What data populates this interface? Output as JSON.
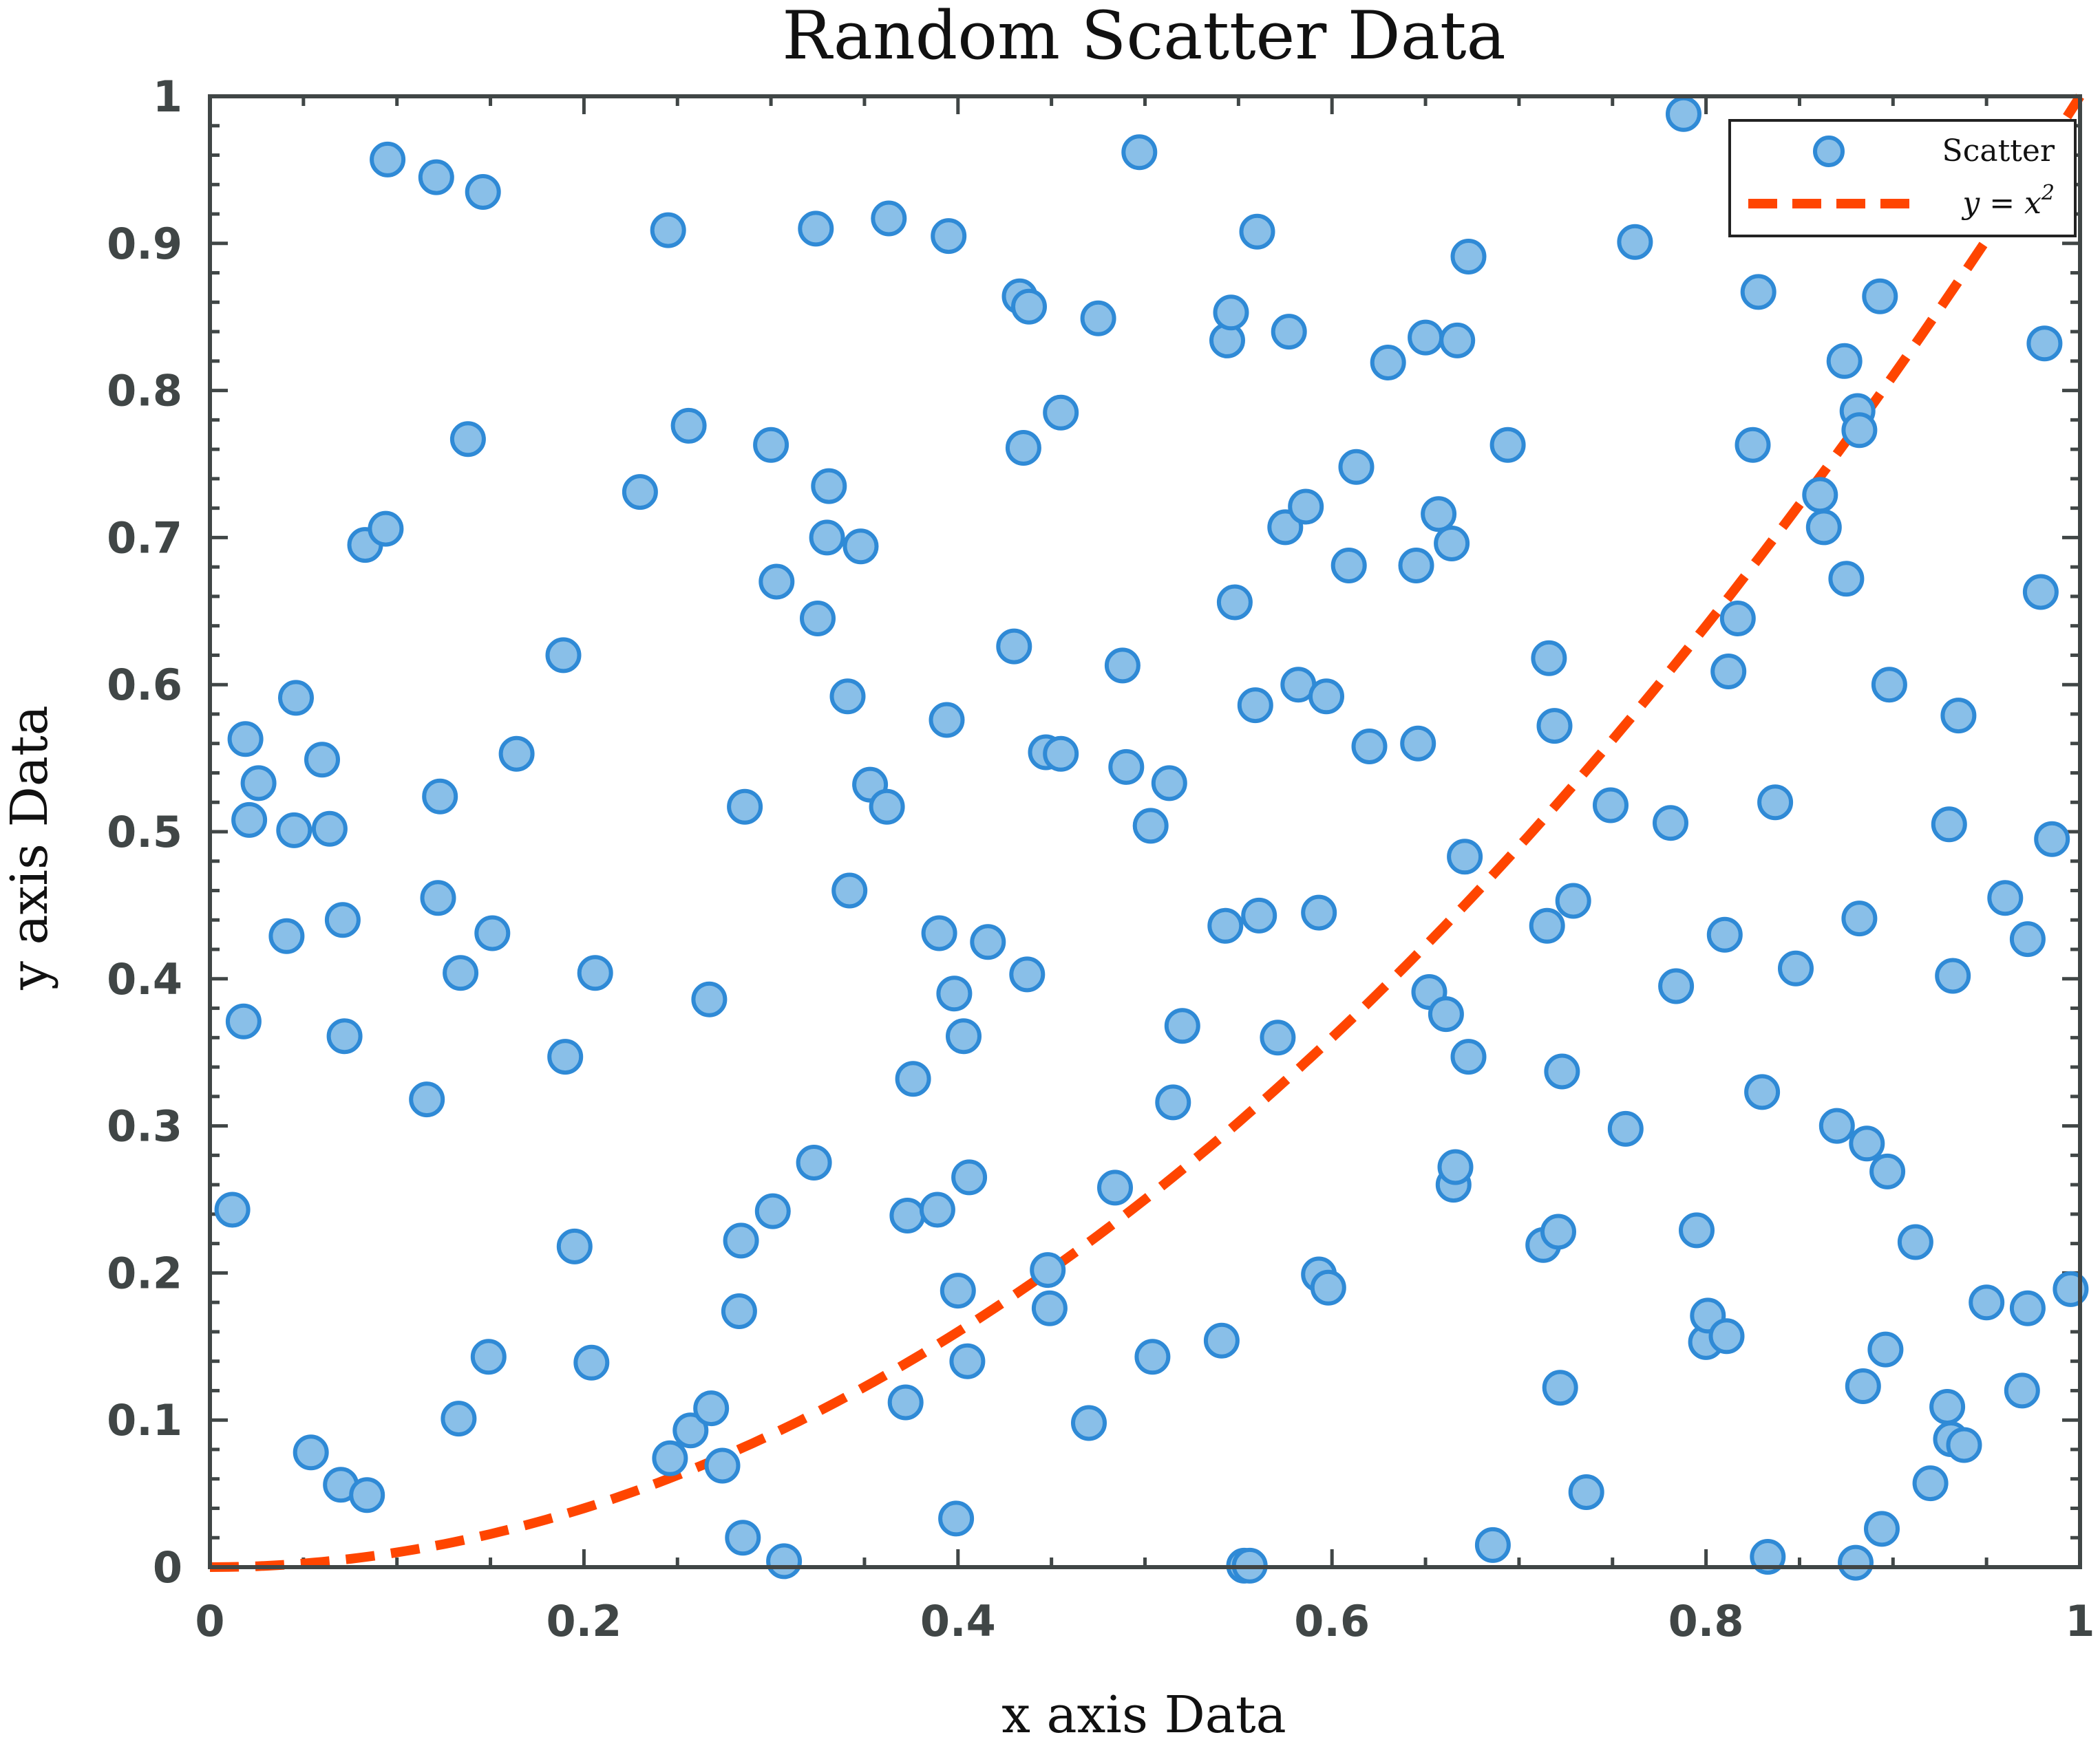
{
  "chart_data": {
    "type": "scatter",
    "title": "Random Scatter Data",
    "xlabel": "x axis Data",
    "ylabel": "y axis Data",
    "xlim": [
      0,
      1
    ],
    "ylim": [
      0,
      1
    ],
    "xticks": [
      "0",
      "0.2",
      "0.4",
      "0.6",
      "0.8",
      "1"
    ],
    "yticks": [
      "0",
      "0.1",
      "0.2",
      "0.3",
      "0.4",
      "0.5",
      "0.6",
      "0.7",
      "0.8",
      "0.9",
      "1"
    ],
    "grid": false,
    "legend_position": "top-right",
    "colors": {
      "scatter_fill": "#89bfe8",
      "scatter_edge": "#2f8ad6",
      "curve": "#ff4500",
      "axis": "#404646"
    },
    "series": [
      {
        "name": "Scatter",
        "type": "scatter",
        "points": [
          [
            0.012,
            0.243
          ],
          [
            0.018,
            0.371
          ],
          [
            0.019,
            0.563
          ],
          [
            0.021,
            0.508
          ],
          [
            0.026,
            0.533
          ],
          [
            0.041,
            0.429
          ],
          [
            0.045,
            0.501
          ],
          [
            0.046,
            0.591
          ],
          [
            0.054,
            0.078
          ],
          [
            0.06,
            0.549
          ],
          [
            0.064,
            0.502
          ],
          [
            0.07,
            0.056
          ],
          [
            0.071,
            0.44
          ],
          [
            0.072,
            0.361
          ],
          [
            0.083,
            0.695
          ],
          [
            0.084,
            0.049
          ],
          [
            0.094,
            0.706
          ],
          [
            0.095,
            0.957
          ],
          [
            0.116,
            0.318
          ],
          [
            0.121,
            0.945
          ],
          [
            0.122,
            0.455
          ],
          [
            0.123,
            0.524
          ],
          [
            0.133,
            0.101
          ],
          [
            0.134,
            0.404
          ],
          [
            0.138,
            0.767
          ],
          [
            0.146,
            0.935
          ],
          [
            0.149,
            0.143
          ],
          [
            0.151,
            0.431
          ],
          [
            0.164,
            0.553
          ],
          [
            0.189,
            0.62
          ],
          [
            0.19,
            0.347
          ],
          [
            0.195,
            0.218
          ],
          [
            0.204,
            0.139
          ],
          [
            0.206,
            0.404
          ],
          [
            0.23,
            0.731
          ],
          [
            0.245,
            0.909
          ],
          [
            0.246,
            0.074
          ],
          [
            0.256,
            0.776
          ],
          [
            0.257,
            0.093
          ],
          [
            0.267,
            0.386
          ],
          [
            0.268,
            0.108
          ],
          [
            0.274,
            0.069
          ],
          [
            0.283,
            0.174
          ],
          [
            0.284,
            0.222
          ],
          [
            0.285,
            0.02
          ],
          [
            0.286,
            0.517
          ],
          [
            0.3,
            0.763
          ],
          [
            0.301,
            0.242
          ],
          [
            0.303,
            0.67
          ],
          [
            0.307,
            0.004
          ],
          [
            0.323,
            0.275
          ],
          [
            0.324,
            0.91
          ],
          [
            0.325,
            0.645
          ],
          [
            0.33,
            0.7
          ],
          [
            0.331,
            0.735
          ],
          [
            0.341,
            0.592
          ],
          [
            0.342,
            0.46
          ],
          [
            0.348,
            0.694
          ],
          [
            0.353,
            0.532
          ],
          [
            0.362,
            0.517
          ],
          [
            0.363,
            0.917
          ],
          [
            0.372,
            0.112
          ],
          [
            0.373,
            0.239
          ],
          [
            0.376,
            0.332
          ],
          [
            0.389,
            0.243
          ],
          [
            0.39,
            0.431
          ],
          [
            0.394,
            0.576
          ],
          [
            0.395,
            0.905
          ],
          [
            0.398,
            0.39
          ],
          [
            0.399,
            0.033
          ],
          [
            0.4,
            0.188
          ],
          [
            0.403,
            0.361
          ],
          [
            0.405,
            0.14
          ],
          [
            0.406,
            0.265
          ],
          [
            0.416,
            0.425
          ],
          [
            0.43,
            0.626
          ],
          [
            0.433,
            0.864
          ],
          [
            0.435,
            0.761
          ],
          [
            0.437,
            0.403
          ],
          [
            0.438,
            0.857
          ],
          [
            0.447,
            0.554
          ],
          [
            0.448,
            0.202
          ],
          [
            0.449,
            0.176
          ],
          [
            0.455,
            0.553
          ],
          [
            0.455,
            0.785
          ],
          [
            0.47,
            0.098
          ],
          [
            0.475,
            0.849
          ],
          [
            0.484,
            0.258
          ],
          [
            0.488,
            0.613
          ],
          [
            0.49,
            0.544
          ],
          [
            0.497,
            0.962
          ],
          [
            0.503,
            0.504
          ],
          [
            0.504,
            0.143
          ],
          [
            0.513,
            0.533
          ],
          [
            0.515,
            0.316
          ],
          [
            0.52,
            0.368
          ],
          [
            0.541,
            0.154
          ],
          [
            0.543,
            0.436
          ],
          [
            0.544,
            0.834
          ],
          [
            0.546,
            0.853
          ],
          [
            0.548,
            0.656
          ],
          [
            0.553,
            0.001
          ],
          [
            0.556,
            0.001
          ],
          [
            0.559,
            0.586
          ],
          [
            0.56,
            0.908
          ],
          [
            0.561,
            0.443
          ],
          [
            0.571,
            0.36
          ],
          [
            0.575,
            0.707
          ],
          [
            0.577,
            0.84
          ],
          [
            0.582,
            0.6
          ],
          [
            0.586,
            0.721
          ],
          [
            0.593,
            0.445
          ],
          [
            0.593,
            0.199
          ],
          [
            0.597,
            0.592
          ],
          [
            0.598,
            0.19
          ],
          [
            0.609,
            0.681
          ],
          [
            0.613,
            0.748
          ],
          [
            0.62,
            0.558
          ],
          [
            0.63,
            0.819
          ],
          [
            0.645,
            0.681
          ],
          [
            0.646,
            0.56
          ],
          [
            0.65,
            0.836
          ],
          [
            0.652,
            0.391
          ],
          [
            0.657,
            0.716
          ],
          [
            0.661,
            0.376
          ],
          [
            0.664,
            0.696
          ],
          [
            0.665,
            0.26
          ],
          [
            0.666,
            0.272
          ],
          [
            0.667,
            0.834
          ],
          [
            0.671,
            0.483
          ],
          [
            0.673,
            0.347
          ],
          [
            0.673,
            0.891
          ],
          [
            0.686,
            0.015
          ],
          [
            0.694,
            0.763
          ],
          [
            0.713,
            0.219
          ],
          [
            0.715,
            0.436
          ],
          [
            0.716,
            0.618
          ],
          [
            0.719,
            0.572
          ],
          [
            0.721,
            0.228
          ],
          [
            0.722,
            0.122
          ],
          [
            0.723,
            0.337
          ],
          [
            0.729,
            0.453
          ],
          [
            0.736,
            0.051
          ],
          [
            0.749,
            0.518
          ],
          [
            0.757,
            0.298
          ],
          [
            0.762,
            0.901
          ],
          [
            0.781,
            0.506
          ],
          [
            0.784,
            0.395
          ],
          [
            0.788,
            0.988
          ],
          [
            0.795,
            0.229
          ],
          [
            0.8,
            0.153
          ],
          [
            0.801,
            0.171
          ],
          [
            0.81,
            0.43
          ],
          [
            0.811,
            0.157
          ],
          [
            0.812,
            0.609
          ],
          [
            0.817,
            0.645
          ],
          [
            0.825,
            0.763
          ],
          [
            0.828,
            0.867
          ],
          [
            0.83,
            0.323
          ],
          [
            0.833,
            0.007
          ],
          [
            0.837,
            0.52
          ],
          [
            0.848,
            0.407
          ],
          [
            0.861,
            0.729
          ],
          [
            0.863,
            0.707
          ],
          [
            0.865,
            0.964
          ],
          [
            0.87,
            0.3
          ],
          [
            0.874,
            0.82
          ],
          [
            0.875,
            0.672
          ],
          [
            0.88,
            0.003
          ],
          [
            0.881,
            0.786
          ],
          [
            0.882,
            0.773
          ],
          [
            0.882,
            0.441
          ],
          [
            0.884,
            0.123
          ],
          [
            0.886,
            0.288
          ],
          [
            0.893,
            0.864
          ],
          [
            0.894,
            0.026
          ],
          [
            0.896,
            0.148
          ],
          [
            0.897,
            0.269
          ],
          [
            0.898,
            0.6
          ],
          [
            0.912,
            0.221
          ],
          [
            0.92,
            0.057
          ],
          [
            0.929,
            0.109
          ],
          [
            0.93,
            0.505
          ],
          [
            0.931,
            0.087
          ],
          [
            0.932,
            0.402
          ],
          [
            0.935,
            0.579
          ],
          [
            0.938,
            0.083
          ],
          [
            0.95,
            0.18
          ],
          [
            0.96,
            0.455
          ],
          [
            0.969,
            0.12
          ],
          [
            0.972,
            0.176
          ],
          [
            0.972,
            0.427
          ],
          [
            0.979,
            0.663
          ],
          [
            0.981,
            0.832
          ],
          [
            0.985,
            0.495
          ],
          [
            0.995,
            0.189
          ]
        ]
      },
      {
        "name": "y = x²",
        "type": "line",
        "function": "y = x^2",
        "x": [
          0,
          0.05,
          0.1,
          0.15,
          0.2,
          0.25,
          0.3,
          0.35,
          0.4,
          0.45,
          0.5,
          0.55,
          0.6,
          0.65,
          0.7,
          0.75,
          0.8,
          0.85,
          0.9,
          0.95,
          1.0
        ],
        "y": [
          0,
          0.0025,
          0.01,
          0.0225,
          0.04,
          0.0625,
          0.09,
          0.1225,
          0.16,
          0.2025,
          0.25,
          0.3025,
          0.36,
          0.4225,
          0.49,
          0.5625,
          0.64,
          0.7225,
          0.81,
          0.9025,
          1.0
        ]
      }
    ],
    "legend": [
      {
        "label": "Scatter",
        "marker": "circle"
      },
      {
        "label_base": "y = x",
        "label_sup": "2",
        "marker": "dashed-line"
      }
    ]
  }
}
